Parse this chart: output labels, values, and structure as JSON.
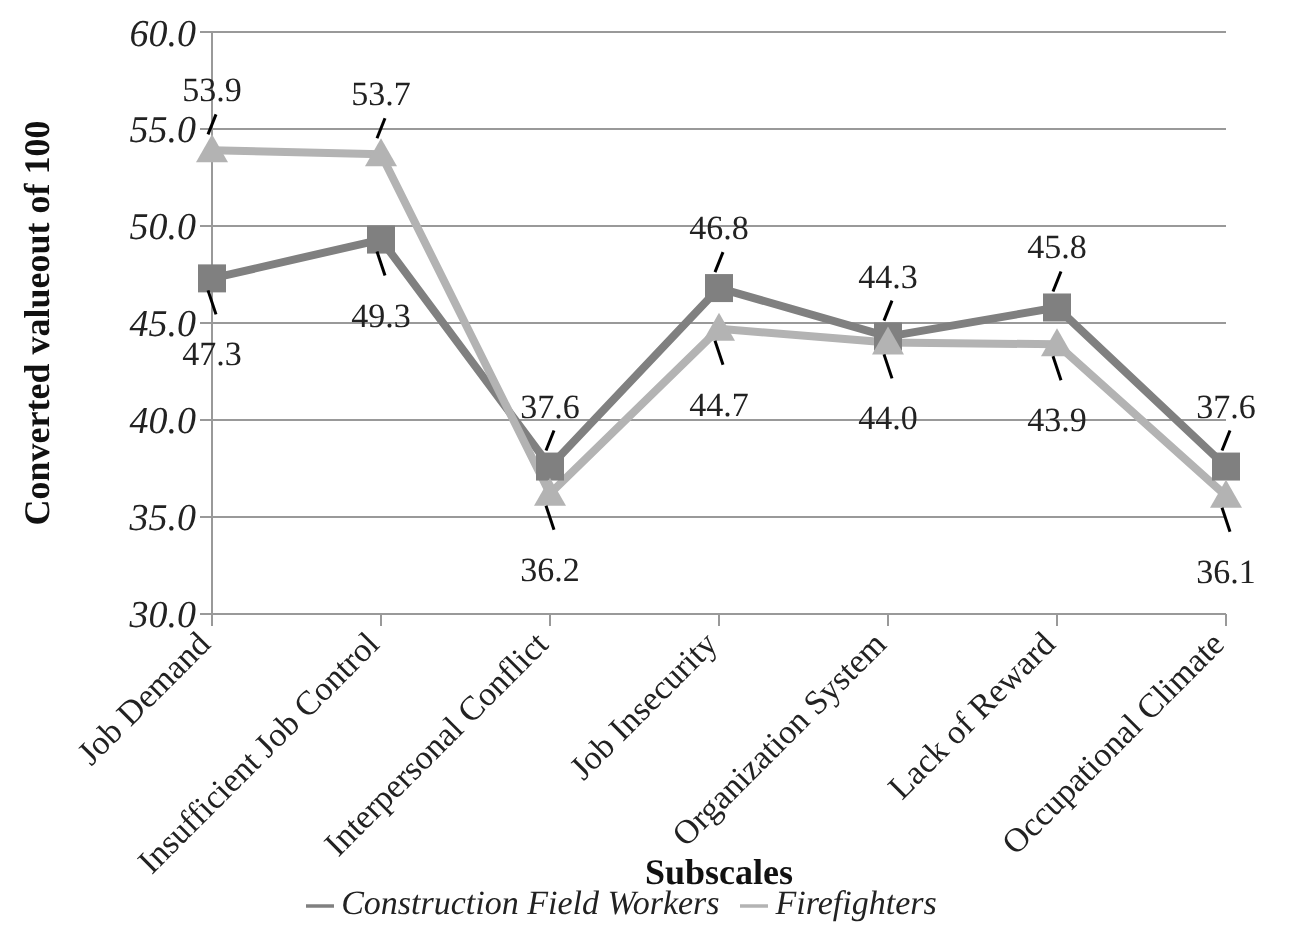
{
  "chart_data": {
    "type": "line",
    "xlabel": "Subscales",
    "ylabel": "Converted valueout of 100",
    "categories": [
      "Job Demand",
      "Insufficient Job Control",
      "Interpersonal Conflict",
      "Job Insecurity",
      "Organization System",
      "Lack of Reward",
      "Occupational Climate"
    ],
    "series": [
      {
        "name": "Construction Field Workers",
        "color": "#808080",
        "marker": "square",
        "values": [
          47.3,
          49.3,
          37.6,
          46.8,
          44.3,
          45.8,
          37.6
        ],
        "value_labels": [
          "47.3",
          "49.3",
          "37.6",
          "46.8",
          "44.3",
          "45.8",
          "37.6"
        ]
      },
      {
        "name": "Firefighters",
        "color": "#b3b3b3",
        "marker": "triangle",
        "values": [
          53.9,
          53.7,
          36.2,
          44.7,
          44.0,
          43.9,
          36.1
        ],
        "value_labels": [
          "53.9",
          "53.7",
          "36.2",
          "44.7",
          "44.0",
          "43.9",
          "36.1"
        ]
      }
    ],
    "ylim": [
      30,
      60
    ],
    "yticks": [
      {
        "value": 30,
        "label": "30.0"
      },
      {
        "value": 35,
        "label": "35.0"
      },
      {
        "value": 40,
        "label": "40.0"
      },
      {
        "value": 45,
        "label": "45.0"
      },
      {
        "value": 50,
        "label": "50.0"
      },
      {
        "value": 55,
        "label": "55.0"
      },
      {
        "value": 60,
        "label": "60.0"
      }
    ],
    "grid": "y",
    "legend": "bottom",
    "line_style": "solid"
  }
}
